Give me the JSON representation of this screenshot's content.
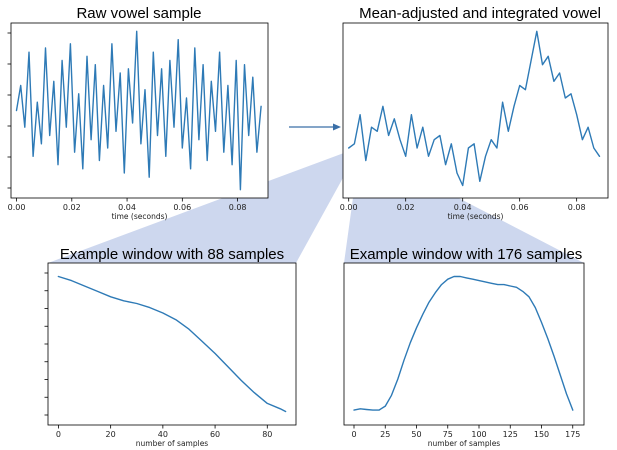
{
  "colors": {
    "series": "#2e7ab6",
    "arrow": "#3a6fa8",
    "fan": "#cdd7ee",
    "frame": "#000000"
  },
  "chart_data": [
    {
      "id": "raw",
      "type": "line",
      "title": "Raw vowel sample",
      "xlabel": "time (seconds)",
      "ylabel": "",
      "xlim": [
        -0.002,
        0.091
      ],
      "ylim": [
        -1.05,
        1.05
      ],
      "xticks": [
        0.0,
        0.02,
        0.04,
        0.06,
        0.08
      ],
      "xtick_labels": [
        "0.00",
        "0.02",
        "0.04",
        "0.06",
        "0.08"
      ],
      "y_tick_count": 6,
      "y_tick_labels_shown": false,
      "grid": false,
      "series": [
        {
          "x": [
            0.0,
            0.0015,
            0.003,
            0.0045,
            0.006,
            0.0075,
            0.009,
            0.0105,
            0.012,
            0.0135,
            0.015,
            0.0165,
            0.018,
            0.0195,
            0.021,
            0.0225,
            0.024,
            0.0255,
            0.027,
            0.0285,
            0.03,
            0.0315,
            0.033,
            0.0345,
            0.036,
            0.0375,
            0.039,
            0.0405,
            0.042,
            0.0435,
            0.045,
            0.0465,
            0.048,
            0.0495,
            0.051,
            0.0525,
            0.054,
            0.0555,
            0.057,
            0.0585,
            0.06,
            0.0615,
            0.063,
            0.0645,
            0.066,
            0.0675,
            0.069,
            0.0705,
            0.072,
            0.0735,
            0.075,
            0.0765,
            0.078,
            0.0795,
            0.081,
            0.0825,
            0.084,
            0.0855,
            0.087,
            0.0885
          ],
          "y": [
            0.0,
            0.3,
            -0.2,
            0.7,
            -0.55,
            0.1,
            -0.4,
            0.75,
            -0.3,
            0.35,
            -0.65,
            0.6,
            -0.2,
            0.8,
            -0.5,
            0.2,
            -0.7,
            0.65,
            -0.35,
            0.55,
            -0.6,
            0.3,
            -0.45,
            0.8,
            -0.25,
            0.45,
            -0.75,
            0.5,
            -0.15,
            0.95,
            -0.4,
            0.25,
            -0.8,
            0.7,
            -0.3,
            0.5,
            -0.55,
            0.6,
            -0.2,
            0.85,
            -0.45,
            0.15,
            -0.7,
            0.75,
            -0.35,
            0.55,
            -0.6,
            0.35,
            -0.25,
            0.7,
            -0.5,
            0.3,
            -0.65,
            0.6,
            -0.95,
            0.55,
            -0.3,
            0.4,
            -0.5,
            0.05
          ]
        }
      ]
    },
    {
      "id": "integrated",
      "type": "line",
      "title": "Mean-adjusted and integrated vowel",
      "xlabel": "time (seconds)",
      "ylabel": "",
      "xlim": [
        -0.002,
        0.091
      ],
      "ylim": [
        -1.05,
        1.05
      ],
      "xticks": [
        0.0,
        0.02,
        0.04,
        0.06,
        0.08
      ],
      "xtick_labels": [
        "0.00",
        "0.02",
        "0.04",
        "0.06",
        "0.08"
      ],
      "y_tick_count": 0,
      "y_tick_labels_shown": false,
      "grid": false,
      "series": [
        {
          "x": [
            0.0,
            0.002,
            0.004,
            0.006,
            0.008,
            0.01,
            0.012,
            0.014,
            0.016,
            0.018,
            0.02,
            0.022,
            0.024,
            0.026,
            0.028,
            0.03,
            0.032,
            0.034,
            0.036,
            0.038,
            0.04,
            0.042,
            0.044,
            0.046,
            0.048,
            0.05,
            0.052,
            0.054,
            0.056,
            0.058,
            0.06,
            0.062,
            0.064,
            0.066,
            0.068,
            0.07,
            0.072,
            0.074,
            0.076,
            0.078,
            0.08,
            0.082,
            0.084,
            0.086,
            0.088
          ],
          "y": [
            -0.45,
            -0.4,
            -0.05,
            -0.6,
            -0.2,
            -0.25,
            0.05,
            -0.3,
            -0.1,
            -0.35,
            -0.55,
            -0.05,
            -0.45,
            -0.2,
            -0.55,
            -0.35,
            -0.3,
            -0.65,
            -0.4,
            -0.75,
            -0.9,
            -0.45,
            -0.4,
            -0.85,
            -0.55,
            -0.35,
            -0.45,
            0.1,
            -0.25,
            0.05,
            0.3,
            0.25,
            0.6,
            0.95,
            0.55,
            0.65,
            0.35,
            0.45,
            0.15,
            0.2,
            -0.05,
            -0.35,
            -0.2,
            -0.45,
            -0.55
          ]
        }
      ]
    },
    {
      "id": "window88",
      "type": "line",
      "title": "Example window with 88 samples",
      "xlabel": "number of samples",
      "ylabel": "",
      "xlim": [
        -4,
        91
      ],
      "ylim": [
        -0.1,
        1.1
      ],
      "xticks": [
        0,
        20,
        40,
        60,
        80
      ],
      "xtick_labels": [
        "0",
        "20",
        "40",
        "60",
        "80"
      ],
      "y_tick_count": 9,
      "y_tick_labels_shown": false,
      "grid": false,
      "series": [
        {
          "x": [
            0,
            5,
            10,
            15,
            20,
            25,
            30,
            35,
            40,
            45,
            50,
            55,
            60,
            65,
            70,
            75,
            80,
            85,
            87
          ],
          "y": [
            1.0,
            0.97,
            0.93,
            0.89,
            0.85,
            0.82,
            0.8,
            0.77,
            0.73,
            0.68,
            0.61,
            0.52,
            0.43,
            0.33,
            0.23,
            0.14,
            0.06,
            0.02,
            0.0
          ]
        }
      ]
    },
    {
      "id": "window176",
      "type": "line",
      "title": "Example window with 176 samples",
      "xlabel": "number of samples",
      "ylabel": "",
      "xlim": [
        -8,
        184
      ],
      "ylim": [
        -0.1,
        1.1
      ],
      "xticks": [
        0,
        25,
        50,
        75,
        100,
        125,
        150,
        175
      ],
      "xtick_labels": [
        "0",
        "25",
        "50",
        "75",
        "100",
        "125",
        "150",
        "175"
      ],
      "y_tick_count": 0,
      "y_tick_labels_shown": false,
      "grid": false,
      "series": [
        {
          "x": [
            0,
            5,
            10,
            15,
            20,
            25,
            30,
            35,
            40,
            45,
            50,
            55,
            60,
            65,
            70,
            75,
            80,
            85,
            90,
            95,
            100,
            105,
            110,
            115,
            120,
            125,
            130,
            135,
            140,
            145,
            150,
            155,
            160,
            165,
            170,
            175
          ],
          "y": [
            0.01,
            0.02,
            0.015,
            0.01,
            0.01,
            0.04,
            0.12,
            0.24,
            0.38,
            0.51,
            0.62,
            0.72,
            0.81,
            0.88,
            0.94,
            0.98,
            1.0,
            1.0,
            0.99,
            0.98,
            0.97,
            0.96,
            0.95,
            0.94,
            0.94,
            0.93,
            0.92,
            0.89,
            0.85,
            0.77,
            0.66,
            0.54,
            0.41,
            0.27,
            0.13,
            0.01
          ]
        }
      ]
    }
  ]
}
